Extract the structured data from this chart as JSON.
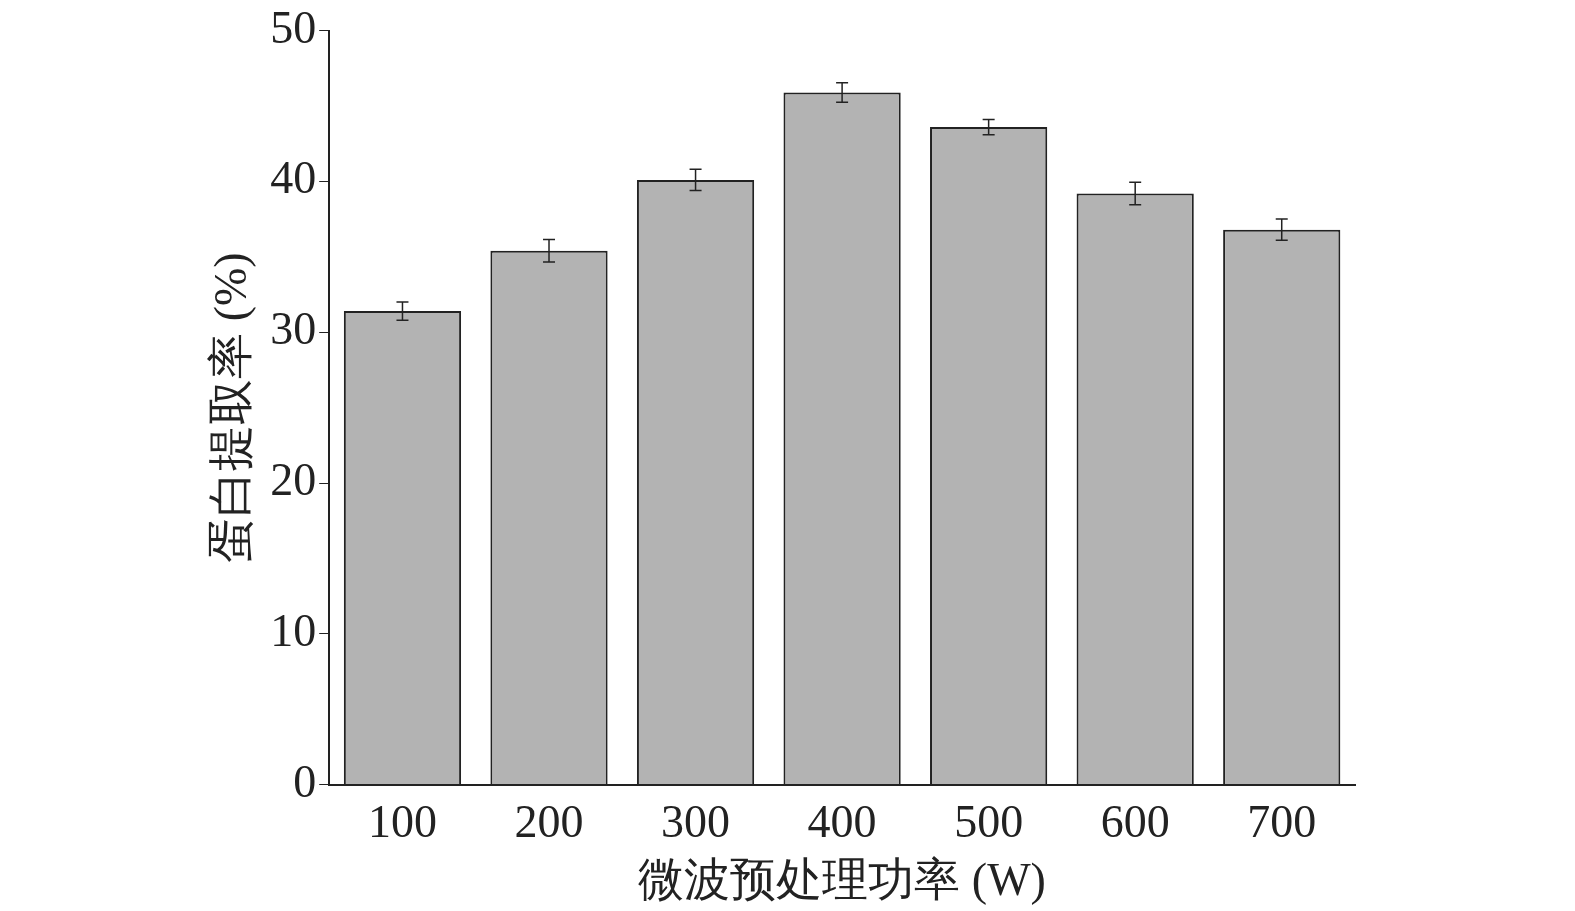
{
  "chart_data": {
    "type": "bar",
    "xlabel": "微波预处理功率 (W)",
    "ylabel": "蛋白提取率 (%)",
    "categories": [
      "100",
      "200",
      "300",
      "400",
      "500",
      "600",
      "700"
    ],
    "values": [
      31.4,
      35.4,
      40.1,
      45.9,
      43.6,
      39.2,
      36.8
    ],
    "errors": [
      0.6,
      0.75,
      0.7,
      0.65,
      0.5,
      0.75,
      0.7
    ],
    "color": "#b3b3b3",
    "ylim": [
      0,
      50
    ],
    "yticks": [
      0,
      10,
      20,
      30,
      40,
      50
    ],
    "grid": false,
    "legend": false
  }
}
